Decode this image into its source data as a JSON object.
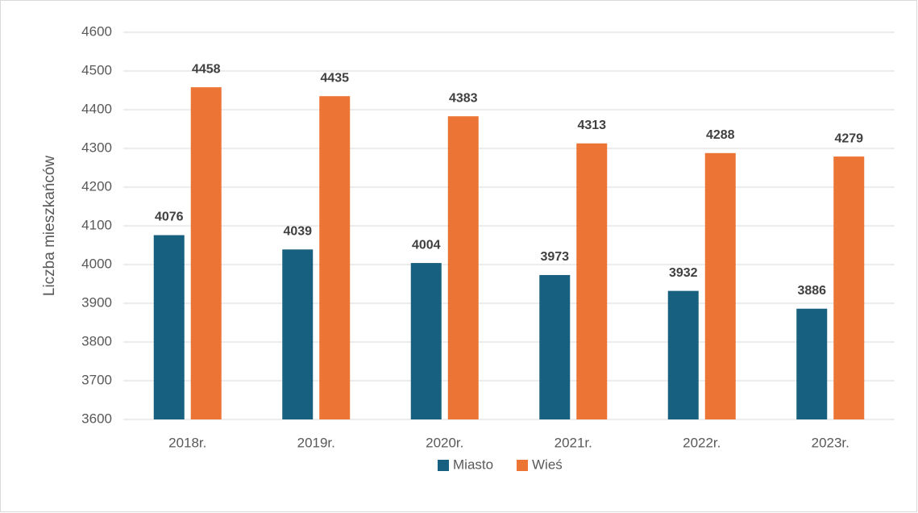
{
  "chart_data": {
    "type": "bar",
    "y_label": "Liczba mieszkańców",
    "categories": [
      "2018r.",
      "2019r.",
      "2020r.",
      "2021r.",
      "2022r.",
      "2023r."
    ],
    "series": [
      {
        "name": "Miasto",
        "color": "#17607f",
        "values": [
          4076,
          4039,
          4004,
          3973,
          3932,
          3886
        ]
      },
      {
        "name": "Wieś",
        "color": "#ec7434",
        "values": [
          4458,
          4435,
          4383,
          4313,
          4288,
          4279
        ]
      }
    ],
    "ylim": [
      3600,
      4600
    ],
    "yticks": [
      3600,
      3700,
      3800,
      3900,
      4000,
      4100,
      4200,
      4300,
      4400,
      4500,
      4600
    ],
    "grid": true,
    "legend": "bottom"
  }
}
